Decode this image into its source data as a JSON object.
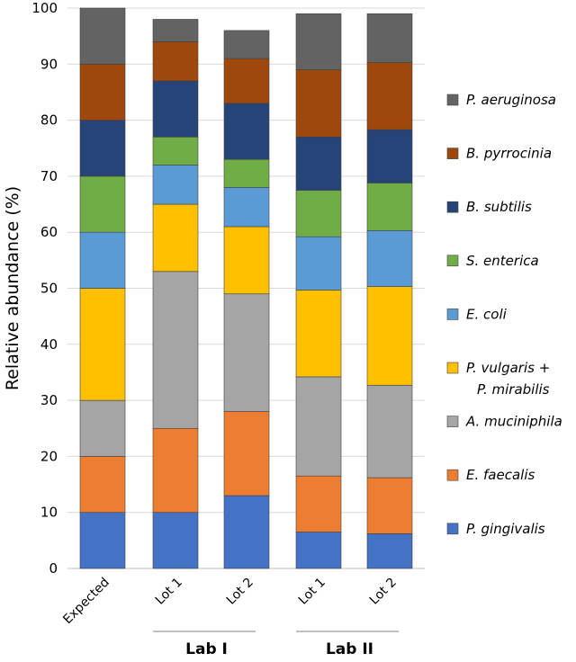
{
  "chart_data": {
    "type": "bar",
    "stacked": true,
    "ylabel": "Relative abundance (%)",
    "ylim": [
      0,
      100
    ],
    "yticks": [
      0,
      10,
      20,
      30,
      40,
      50,
      60,
      70,
      80,
      90,
      100
    ],
    "grid": true,
    "legend_position": "right",
    "categories": [
      "Expected",
      "Lot 1",
      "Lot 2",
      "Lot 1",
      "Lot 2"
    ],
    "groups": [
      {
        "label": "Lab I",
        "categories": [
          1,
          2
        ]
      },
      {
        "label": "Lab II",
        "categories": [
          3,
          4
        ]
      }
    ],
    "series": [
      {
        "name": "P. gingivalis",
        "color": "#4472C4",
        "values": [
          10,
          10,
          13,
          6.5,
          6.2
        ]
      },
      {
        "name": "E. faecalis",
        "color": "#ED7D31",
        "values": [
          10,
          15,
          15,
          10,
          10
        ]
      },
      {
        "name": "A. muciniphila",
        "color": "#A5A5A5",
        "values": [
          10,
          28,
          21,
          17.7,
          16.5
        ]
      },
      {
        "name": "P. vulgaris + P. mirabilis",
        "legend_lines": [
          "P. vulgaris +",
          "P. mirabilis"
        ],
        "color": "#FFC000",
        "values": [
          20,
          12,
          12,
          15.5,
          17.6
        ]
      },
      {
        "name": "E. coli",
        "color": "#5B9BD5",
        "values": [
          10,
          7,
          7,
          9.5,
          10
        ]
      },
      {
        "name": "S. enterica",
        "color": "#70AD47",
        "values": [
          10,
          5,
          5,
          8.3,
          8.5
        ]
      },
      {
        "name": "B. subtilis",
        "color": "#264478",
        "values": [
          10,
          10,
          10,
          9.5,
          9.5
        ]
      },
      {
        "name": "B. pyrrocinia",
        "color": "#9E480E",
        "values": [
          10,
          7,
          8,
          12,
          12
        ]
      },
      {
        "name": "P. aeruginosa",
        "color": "#636363",
        "values": [
          10,
          4,
          5,
          10,
          8.7
        ]
      }
    ]
  }
}
